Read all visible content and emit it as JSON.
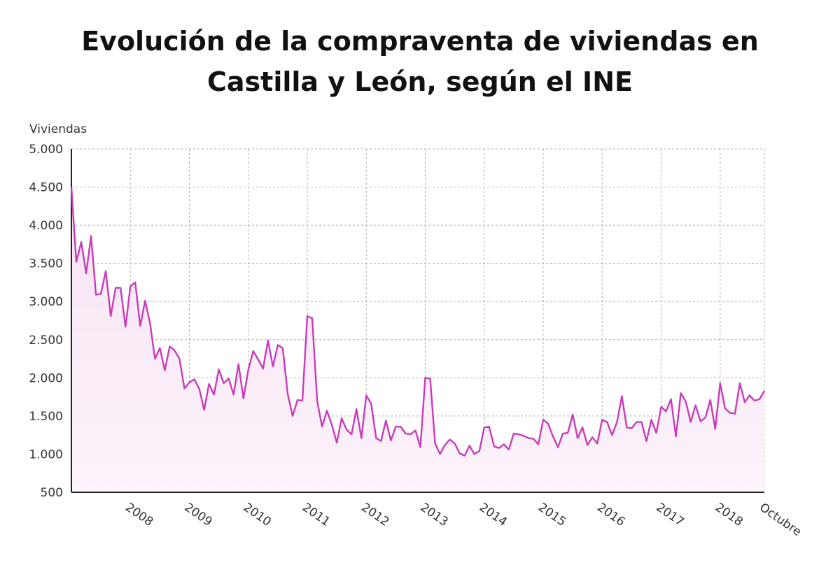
{
  "chart_data": {
    "type": "area",
    "title": "Evolución de la compraventa de viviendas en Castilla y León, según el INE",
    "ylabel": "Viviendas",
    "xlabel": "",
    "ylim": [
      500,
      5000
    ],
    "xlim": [
      2007.0,
      2018.75
    ],
    "yticks": [
      500,
      1000,
      1500,
      2000,
      2500,
      3000,
      3500,
      4000,
      4500,
      5000
    ],
    "ytick_labels": [
      "500",
      "1.000",
      "1.500",
      "2.000",
      "2.500",
      "3.000",
      "3.500",
      "4.000",
      "4.500",
      "5.000"
    ],
    "xticks": [
      2008,
      2009,
      2010,
      2011,
      2012,
      2013,
      2014,
      2015,
      2016,
      2017,
      2018,
      2018.75
    ],
    "xtick_labels": [
      "2008",
      "2009",
      "2010",
      "2011",
      "2012",
      "2013",
      "2014",
      "2015",
      "2016",
      "2017",
      "2018",
      "Octubre"
    ],
    "grid": true,
    "colors": {
      "line": "#c83cb9",
      "fill_top": "#f6e3f3",
      "fill_bottom": "#fcf3fb",
      "grid": "#b0b0b0",
      "axis": "#222222"
    },
    "series": [
      {
        "x": [
          2007.0,
          2007.083,
          2007.167,
          2007.25,
          2007.333,
          2007.417,
          2007.5,
          2007.583,
          2007.667,
          2007.75,
          2007.833,
          2007.917,
          2008.0,
          2008.083,
          2008.167,
          2008.25,
          2008.333,
          2008.417,
          2008.5,
          2008.583,
          2008.667,
          2008.75,
          2008.833,
          2008.917,
          2009.0,
          2009.083,
          2009.167,
          2009.25,
          2009.333,
          2009.417,
          2009.5,
          2009.583,
          2009.667,
          2009.75,
          2009.833,
          2009.917,
          2010.0,
          2010.083,
          2010.167,
          2010.25,
          2010.333,
          2010.417,
          2010.5,
          2010.583,
          2010.667,
          2010.75,
          2010.833,
          2010.917,
          2011.0,
          2011.083,
          2011.167,
          2011.25,
          2011.333,
          2011.417,
          2011.5,
          2011.583,
          2011.667,
          2011.75,
          2011.833,
          2011.917,
          2012.0,
          2012.083,
          2012.167,
          2012.25,
          2012.333,
          2012.417,
          2012.5,
          2012.583,
          2012.667,
          2012.75,
          2012.833,
          2012.917,
          2013.0,
          2013.083,
          2013.167,
          2013.25,
          2013.333,
          2013.417,
          2013.5,
          2013.583,
          2013.667,
          2013.75,
          2013.833,
          2013.917,
          2014.0,
          2014.083,
          2014.167,
          2014.25,
          2014.333,
          2014.417,
          2014.5,
          2014.583,
          2014.667,
          2014.75,
          2014.833,
          2014.917,
          2015.0,
          2015.083,
          2015.167,
          2015.25,
          2015.333,
          2015.417,
          2015.5,
          2015.583,
          2015.667,
          2015.75,
          2015.833,
          2015.917,
          2016.0,
          2016.083,
          2016.167,
          2016.25,
          2016.333,
          2016.417,
          2016.5,
          2016.583,
          2016.667,
          2016.75,
          2016.833,
          2016.917,
          2017.0,
          2017.083,
          2017.167,
          2017.25,
          2017.333,
          2017.417,
          2017.5,
          2017.583,
          2017.667,
          2017.75,
          2017.833,
          2017.917,
          2018.0,
          2018.083,
          2018.167,
          2018.25,
          2018.333,
          2018.417,
          2018.5,
          2018.583,
          2018.667,
          2018.75
        ],
        "values": [
          4500,
          3520,
          3780,
          3370,
          3860,
          3090,
          3100,
          3400,
          2810,
          3180,
          3180,
          2670,
          3200,
          3250,
          2680,
          3010,
          2720,
          2250,
          2390,
          2100,
          2410,
          2360,
          2250,
          1860,
          1940,
          1980,
          1860,
          1580,
          1920,
          1780,
          2110,
          1930,
          1990,
          1780,
          2180,
          1730,
          2110,
          2350,
          2240,
          2120,
          2490,
          2150,
          2430,
          2390,
          1790,
          1500,
          1710,
          1700,
          2810,
          2780,
          1700,
          1360,
          1570,
          1380,
          1150,
          1470,
          1320,
          1260,
          1590,
          1210,
          1770,
          1660,
          1210,
          1170,
          1440,
          1180,
          1360,
          1360,
          1270,
          1260,
          1310,
          1090,
          2000,
          1990,
          1140,
          1000,
          1120,
          1190,
          1140,
          1010,
          980,
          1110,
          1000,
          1040,
          1350,
          1360,
          1100,
          1080,
          1130,
          1060,
          1270,
          1260,
          1240,
          1210,
          1200,
          1130,
          1450,
          1400,
          1230,
          1090,
          1270,
          1280,
          1520,
          1210,
          1350,
          1120,
          1220,
          1140,
          1450,
          1420,
          1250,
          1420,
          1760,
          1350,
          1340,
          1420,
          1420,
          1170,
          1450,
          1280,
          1620,
          1560,
          1720,
          1230,
          1800,
          1690,
          1420,
          1640,
          1430,
          1480,
          1710,
          1330,
          1930,
          1600,
          1540,
          1530,
          1930,
          1680,
          1770,
          1700,
          1720,
          1830
        ]
      }
    ]
  }
}
